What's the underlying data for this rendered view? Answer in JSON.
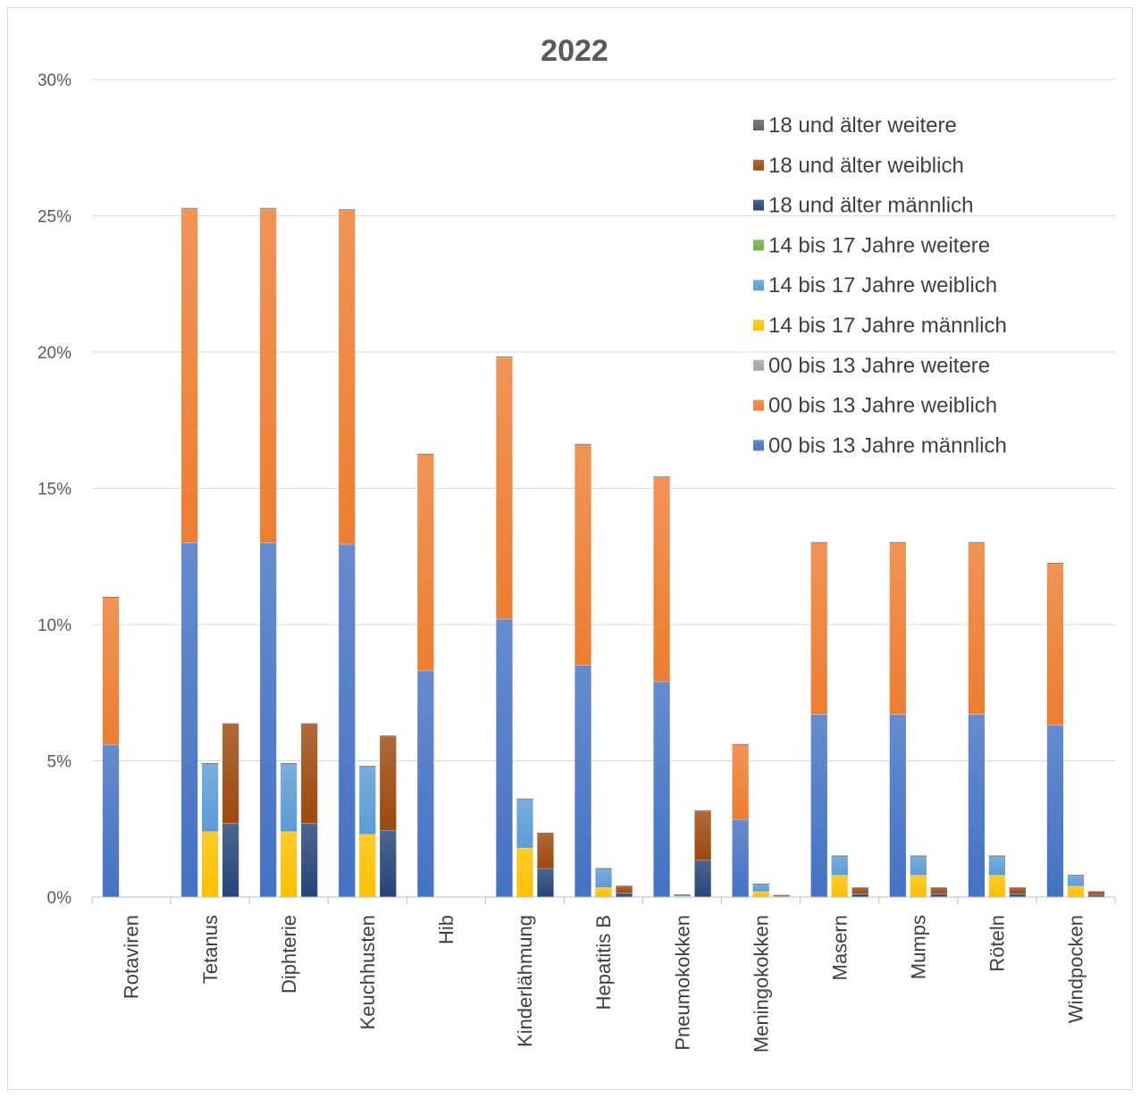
{
  "chart_data": {
    "type": "bar",
    "title": "2022",
    "xlabel": "",
    "ylabel": "",
    "ylim": [
      0,
      30
    ],
    "y_ticks": [
      "0%",
      "5%",
      "10%",
      "15%",
      "20%",
      "25%",
      "30%"
    ],
    "grid": true,
    "legend_position": "top-right",
    "categories": [
      "Rotaviren",
      "Tetanus",
      "Diphterie",
      "Keuchhusten",
      "Hib",
      "Kinderlähmung",
      "Hepatitis B",
      "Pneumokokken",
      "Meningokokken",
      "Masern",
      "Mumps",
      "Röteln",
      "Windpocken"
    ],
    "stacks": [
      {
        "group": "00 bis 13 Jahre",
        "series": [
          {
            "name": "00 bis 13 Jahre männlich",
            "color": "#4472c4",
            "values": [
              5.6,
              13.0,
              13.0,
              12.95,
              8.3,
              10.2,
              8.5,
              7.9,
              2.85,
              6.7,
              6.7,
              6.7,
              6.3
            ]
          },
          {
            "name": "00 bis 13 Jahre weiblich",
            "color": "#ed7d31",
            "values": [
              5.4,
              12.25,
              12.25,
              12.25,
              7.95,
              9.6,
              8.1,
              7.5,
              2.75,
              6.3,
              6.3,
              6.3,
              5.95
            ]
          },
          {
            "name": "00 bis 13 Jahre weitere",
            "color": "#a5a5a5",
            "values": [
              0,
              0.02,
              0.02,
              0.02,
              0,
              0.02,
              0.01,
              0.02,
              0,
              0.01,
              0.01,
              0.01,
              0
            ]
          }
        ]
      },
      {
        "group": "14 bis 17 Jahre",
        "series": [
          {
            "name": "14 bis 17 Jahre männlich",
            "color": "#ffc000",
            "values": [
              0,
              2.4,
              2.4,
              2.3,
              0,
              1.8,
              0.35,
              0.03,
              0.2,
              0.8,
              0.8,
              0.8,
              0.4
            ]
          },
          {
            "name": "14 bis 17 Jahre weiblich",
            "color": "#5b9bd5",
            "values": [
              0,
              2.5,
              2.5,
              2.5,
              0,
              1.8,
              0.7,
              0.05,
              0.28,
              0.7,
              0.7,
              0.7,
              0.4
            ]
          },
          {
            "name": "14 bis 17 Jahre weitere",
            "color": "#70ad47",
            "values": [
              0,
              0,
              0,
              0,
              0,
              0,
              0,
              0,
              0,
              0.01,
              0.01,
              0.01,
              0
            ]
          }
        ]
      },
      {
        "group": "18 und älter",
        "series": [
          {
            "name": "18 und älter männlich",
            "color": "#264478",
            "values": [
              0,
              2.7,
              2.7,
              2.45,
              0,
              1.05,
              0.15,
              1.35,
              0.02,
              0.12,
              0.12,
              0.12,
              0.07
            ]
          },
          {
            "name": "18 und älter weiblich",
            "color": "#9e480e",
            "values": [
              0,
              3.65,
              3.65,
              3.45,
              0,
              1.3,
              0.25,
              1.8,
              0.04,
              0.22,
              0.22,
              0.22,
              0.13
            ]
          },
          {
            "name": "18 und älter weitere",
            "color": "#636363",
            "values": [
              0,
              0.01,
              0.01,
              0.01,
              0,
              0,
              0,
              0.02,
              0,
              0,
              0,
              0,
              0
            ]
          }
        ]
      }
    ],
    "legend": [
      {
        "name": "18 und älter weitere",
        "color": "#636363"
      },
      {
        "name": "18 und älter weiblich",
        "color": "#9e480e"
      },
      {
        "name": "18 und älter männlich",
        "color": "#264478"
      },
      {
        "name": "14 bis 17 Jahre weitere",
        "color": "#70ad47"
      },
      {
        "name": "14 bis 17 Jahre weiblich",
        "color": "#5b9bd5"
      },
      {
        "name": "14 bis 17 Jahre männlich",
        "color": "#ffc000"
      },
      {
        "name": "00 bis 13 Jahre weitere",
        "color": "#a5a5a5"
      },
      {
        "name": "00 bis 13 Jahre weiblich",
        "color": "#ed7d31"
      },
      {
        "name": "00 bis 13 Jahre männlich",
        "color": "#4472c4"
      }
    ]
  }
}
